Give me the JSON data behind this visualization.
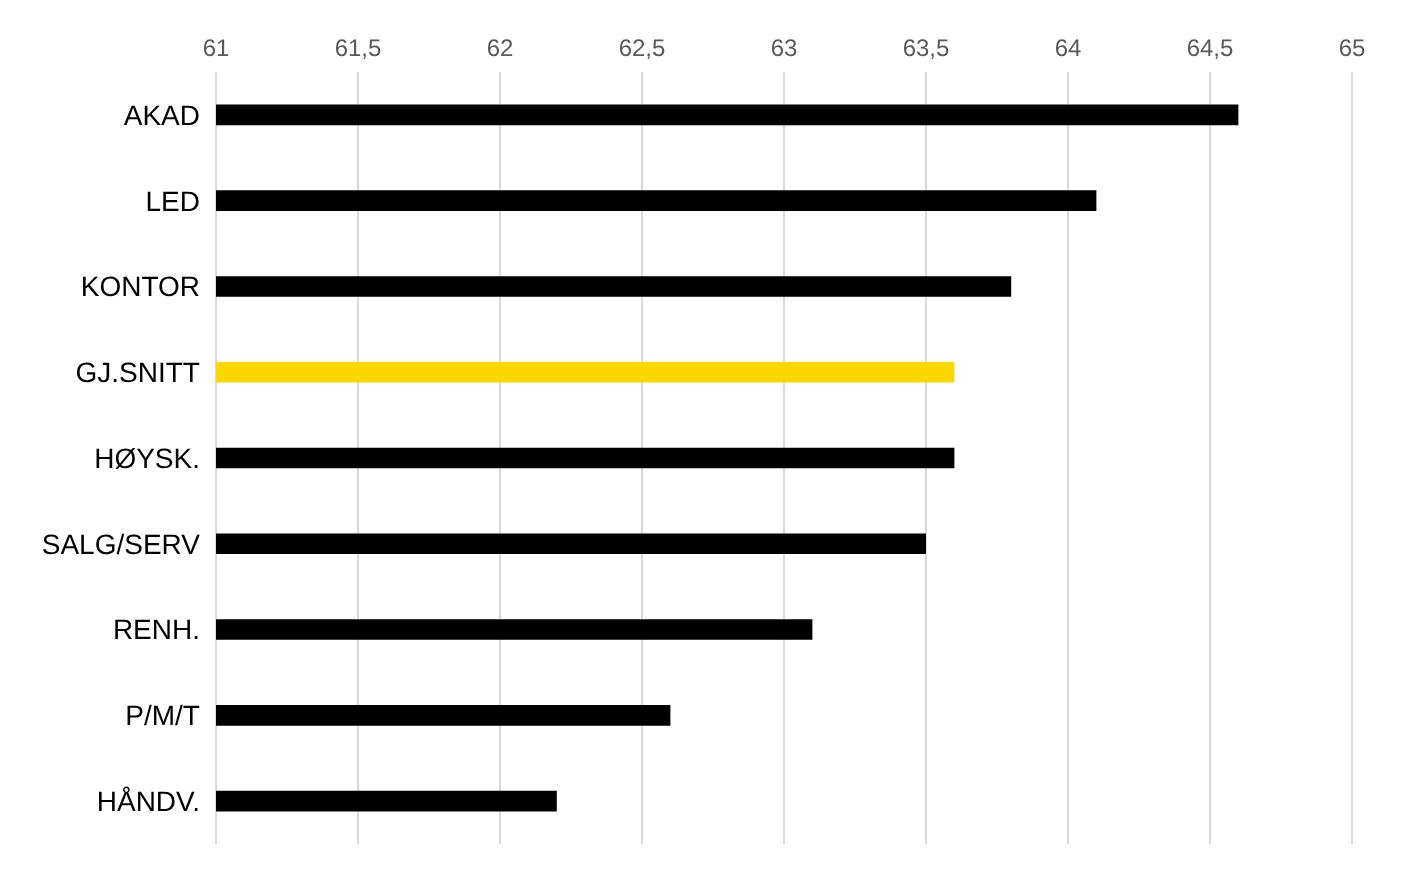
{
  "chart_data": {
    "type": "bar",
    "orientation": "horizontal",
    "categories": [
      "AKAD",
      "LED",
      "KONTOR",
      "GJ.SNITT",
      "HØYSK.",
      "SALG/SERV",
      "RENH.",
      "P/M/T",
      "HÅNDV."
    ],
    "values": [
      64.6,
      64.1,
      63.8,
      63.6,
      63.6,
      63.5,
      63.1,
      62.6,
      62.2
    ],
    "colors": [
      "#000000",
      "#000000",
      "#000000",
      "#ffd700",
      "#000000",
      "#000000",
      "#000000",
      "#000000",
      "#000000"
    ],
    "xlim": [
      61,
      65
    ],
    "xticks": [
      61,
      {
        "value": 61.5,
        "label": "61,5"
      },
      62,
      {
        "value": 62.5,
        "label": "62,5"
      },
      63,
      {
        "value": 63.5,
        "label": "63,5"
      },
      64,
      {
        "value": 64.5,
        "label": "64,5"
      },
      65
    ],
    "grid": "x"
  }
}
